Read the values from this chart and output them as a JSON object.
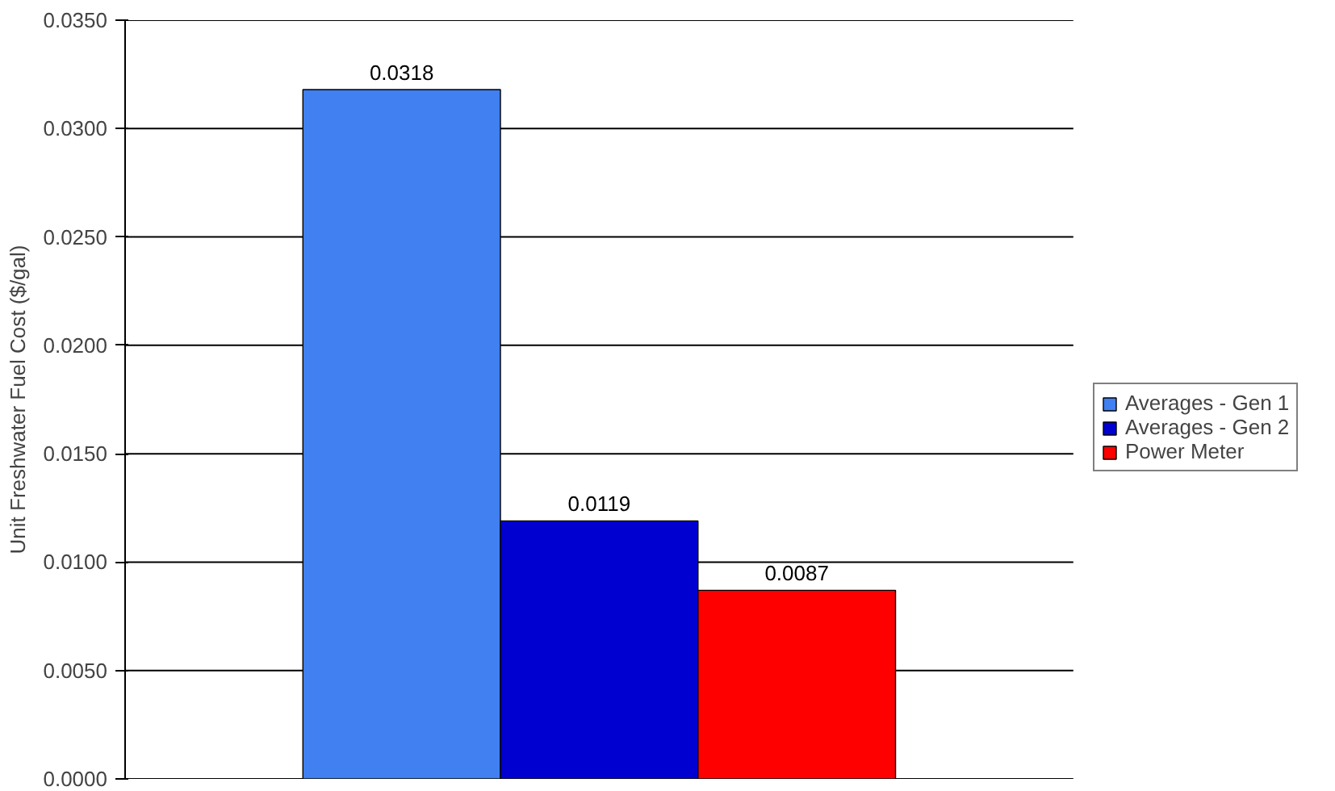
{
  "chart_data": {
    "type": "bar",
    "ylabel": "Unit Freshwater Fuel Cost ($/gal)",
    "categories": [
      null
    ],
    "series": [
      {
        "name": "Averages - Gen 1",
        "color": "#4080f0",
        "values": [
          0.0318
        ]
      },
      {
        "name": "Averages - Gen 2",
        "color": "#0000d0",
        "values": [
          0.0119
        ]
      },
      {
        "name": "Power Meter",
        "color": "#ff0000",
        "values": [
          0.0087
        ]
      }
    ],
    "ylim": [
      0,
      0.035
    ],
    "yticks": [
      {
        "value": 0,
        "label": "0.0000"
      },
      {
        "value": 0.005,
        "label": "0.0050"
      },
      {
        "value": 0.01,
        "label": "0.0100"
      },
      {
        "value": 0.015,
        "label": "0.0150"
      },
      {
        "value": 0.02,
        "label": "0.0200"
      },
      {
        "value": 0.025,
        "label": "0.0250"
      },
      {
        "value": 0.03,
        "label": "0.0300"
      },
      {
        "value": 0.035,
        "label": "0.0350"
      }
    ],
    "grid": "y",
    "legend": "right",
    "data_labels": true
  }
}
